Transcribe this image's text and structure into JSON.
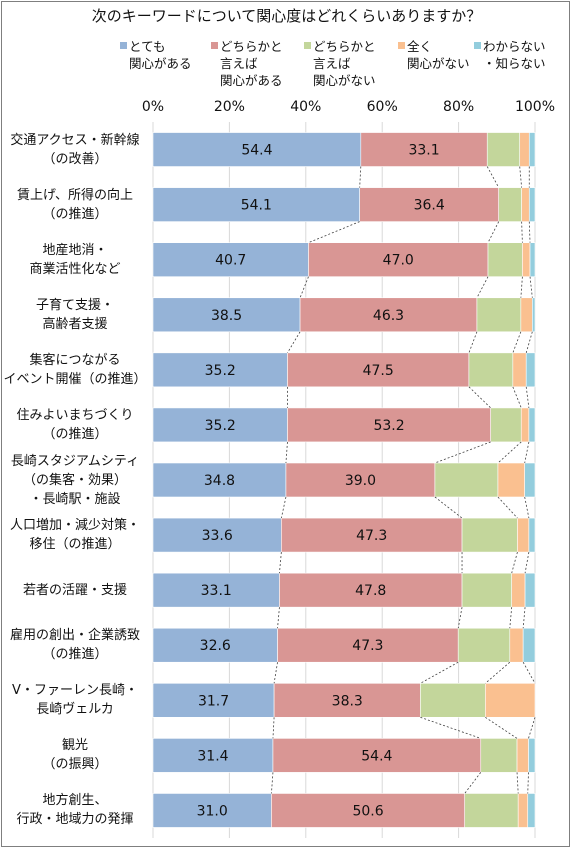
{
  "chart_data": {
    "type": "bar",
    "orientation": "horizontal",
    "stacked": true,
    "title": "次のキーワードについて関心度はどれくらいありますか？",
    "xlim": [
      0,
      100
    ],
    "xticks": [
      "0%",
      "20%",
      "40%",
      "60%",
      "80%",
      "100%"
    ],
    "legend_position": "top",
    "series": [
      {
        "name": "とても\n関心がある",
        "color": "#95b3d7"
      },
      {
        "name": "どちらかと\n言えば\n関心がある",
        "color": "#d99694"
      },
      {
        "name": "どちらかと\n言えば\n関心がない",
        "color": "#c3d69b"
      },
      {
        "name": "全く\n関心がない",
        "color": "#fac090"
      },
      {
        "name": "わからない\n・知らない",
        "color": "#93cddd"
      }
    ],
    "categories": [
      "交通アクセス・新幹線\n（の改善）",
      "賃上げ、所得の向上\n（の推進）",
      "地産地消・\n商業活性化など",
      "子育て支援・\n高齢者支援",
      "集客につながる\nイベント開催（の推進）",
      "住みよいまちづくり\n（の推進）",
      "長崎スタジアムシティ\n（の集客・効果）\n・長崎駅・施設",
      "人口増加・減少対策・\n移住（の推進）",
      "若者の活躍・支援",
      "雇用の創出・企業誘致\n（の推進）",
      "V・ファーレン長崎・\n長崎ヴェルカ",
      "観光\n（の振興）",
      "地方創生、\n行政・地域力の発揮"
    ],
    "values": [
      [
        54.4,
        33.1,
        8.5,
        2.5,
        1.5
      ],
      [
        54.1,
        36.4,
        6.0,
        2.0,
        1.5
      ],
      [
        40.7,
        47.0,
        9.0,
        2.0,
        1.3
      ],
      [
        38.5,
        46.3,
        11.5,
        3.0,
        0.7
      ],
      [
        35.2,
        47.5,
        11.5,
        3.5,
        2.3
      ],
      [
        35.2,
        53.2,
        8.0,
        2.0,
        1.6
      ],
      [
        34.8,
        39.0,
        16.5,
        7.0,
        2.7
      ],
      [
        33.6,
        47.3,
        14.5,
        3.0,
        1.6
      ],
      [
        33.1,
        47.8,
        13.0,
        3.5,
        2.6
      ],
      [
        32.6,
        47.3,
        13.5,
        3.5,
        3.1
      ],
      [
        31.7,
        38.3,
        17.0,
        13.0,
        0.0
      ],
      [
        31.4,
        54.4,
        9.5,
        3.0,
        1.7
      ],
      [
        31.0,
        50.6,
        14.0,
        2.5,
        1.9
      ]
    ],
    "show_labels_for_series": [
      0,
      1
    ],
    "gridlines": true,
    "connector_lines": true
  }
}
